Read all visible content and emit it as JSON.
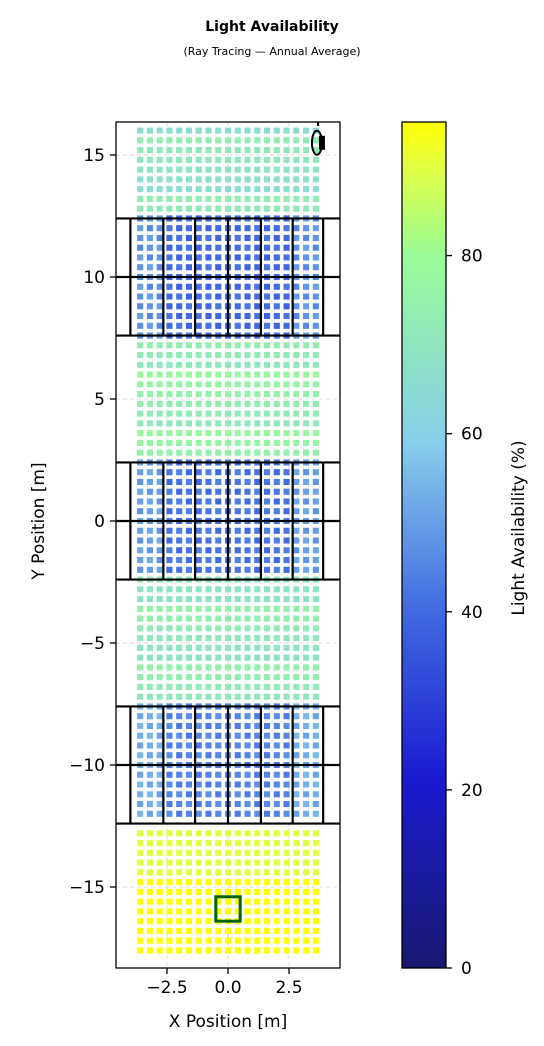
{
  "title": "Light Availability",
  "subtitle": "(Ray Tracing — Annual Average)",
  "chart_data": {
    "type": "heatmap",
    "xlabel": "X Position [m]",
    "ylabel": "Y Position [m]",
    "xlim": [
      -4.5,
      4.5
    ],
    "ylim": [
      -18.5,
      16.3
    ],
    "x_ticks": [
      -2.5,
      0.0,
      2.5
    ],
    "x_tick_labels": [
      "−2.5",
      "0.0",
      "2.5"
    ],
    "y_ticks": [
      -15,
      -10,
      -5,
      0,
      5,
      10,
      15
    ],
    "y_tick_labels": [
      "−15",
      "−10",
      "−5",
      "0",
      "5",
      "10",
      "15"
    ],
    "grid": true,
    "sensor_grid": {
      "x_start": -3.6,
      "x_step": 0.4,
      "x_count": 19,
      "y_start": -17.6,
      "y_step": 0.4,
      "y_count": 86,
      "cell_size": 0.25
    },
    "light_levels_by_zone": [
      {
        "y_range": [
          -17.8,
          -14.5
        ],
        "value": 96
      },
      {
        "y_range": [
          -14.5,
          -12.6
        ],
        "value": 90
      },
      {
        "y_range": [
          -12.4,
          -7.6
        ],
        "value": 45
      },
      {
        "y_range": [
          -7.6,
          -2.4
        ],
        "value": 72
      },
      {
        "y_range": [
          -2.4,
          2.4
        ],
        "value": 42
      },
      {
        "y_range": [
          2.4,
          7.6
        ],
        "value": 75
      },
      {
        "y_range": [
          7.6,
          12.4
        ],
        "value": 40
      },
      {
        "y_range": [
          12.4,
          16.3
        ],
        "value": 70
      }
    ],
    "panel_rows": [
      {
        "y_bottom": -12.4,
        "y_top": -7.6
      },
      {
        "y_bottom": -2.4,
        "y_top": 2.4
      },
      {
        "y_bottom": 7.6,
        "y_top": 12.4
      }
    ],
    "panel_columns": [
      -4.0,
      -2.65,
      -1.35,
      0.0,
      1.35,
      2.65,
      3.9
    ],
    "selected_cell": {
      "x": 0.0,
      "y": -15.9,
      "size": 1.0,
      "color": "#006400"
    },
    "marker": {
      "x": 3.85,
      "y": 15.5
    },
    "colorbar": {
      "label": "Light Availability (%)",
      "range": [
        0,
        95
      ],
      "ticks": [
        0,
        20,
        40,
        60,
        80
      ],
      "tick_labels": [
        "0",
        "20",
        "40",
        "60",
        "80"
      ],
      "colors": [
        "#191970",
        "#1a1ad0",
        "#4169e1",
        "#87ceeb",
        "#98fb98",
        "#e5ff40",
        "#ffff00"
      ],
      "stops": [
        0,
        0.22,
        0.42,
        0.62,
        0.84,
        0.95,
        1.0
      ]
    }
  }
}
